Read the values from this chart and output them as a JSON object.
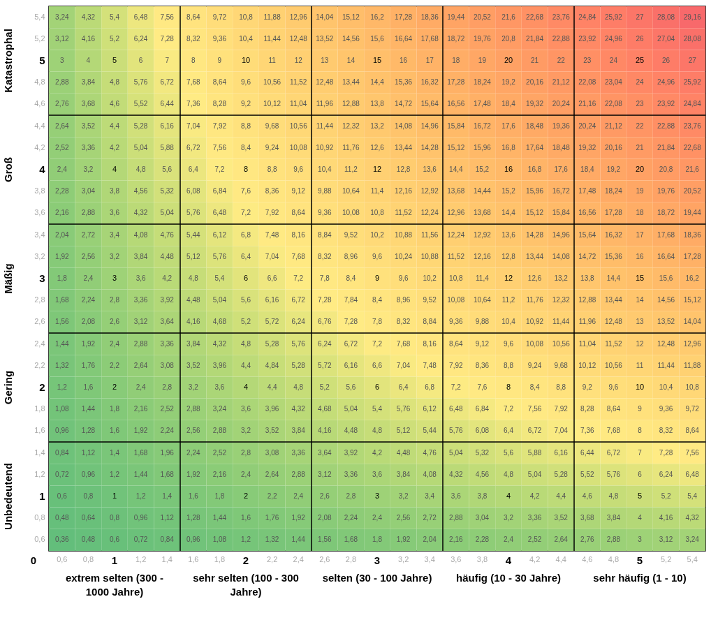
{
  "chart_data": {
    "type": "heatmap",
    "categories": [
      "0,6",
      "0,8",
      "1",
      "1,2",
      "1,4",
      "1,6",
      "1,8",
      "2",
      "2,2",
      "2,4",
      "2,6",
      "2,8",
      "3",
      "3,2",
      "3,4",
      "3,6",
      "3,8",
      "4",
      "4,2",
      "4,4",
      "4,6",
      "4,8",
      "5",
      "5,2",
      "5,4"
    ],
    "y_categories": [
      "5,4",
      "5,2",
      "5",
      "4,8",
      "4,6",
      "4,4",
      "4,2",
      "4",
      "3,8",
      "3,6",
      "3,4",
      "3,2",
      "3",
      "2,8",
      "2,6",
      "2,4",
      "2,2",
      "2",
      "1,8",
      "1,6",
      "1,4",
      "1,2",
      "1",
      "0,8",
      "0,6"
    ],
    "colors": [
      "#63be7b",
      "#ffeb84",
      "#f8696b"
    ],
    "cell_labels": [
      [
        "3,24",
        "4,32",
        "5,4",
        "6,48",
        "7,56",
        "8,64",
        "9,72",
        "10,8",
        "11,88",
        "12,96",
        "14,04",
        "15,12",
        "16,2",
        "17,28",
        "18,36",
        "19,44",
        "20,52",
        "21,6",
        "22,68",
        "23,76",
        "24,84",
        "25,92",
        "27",
        "28,08",
        "29,16"
      ],
      [
        "3,12",
        "4,16",
        "5,2",
        "6,24",
        "7,28",
        "8,32",
        "9,36",
        "10,4",
        "11,44",
        "12,48",
        "13,52",
        "14,56",
        "15,6",
        "16,64",
        "17,68",
        "18,72",
        "19,76",
        "20,8",
        "21,84",
        "22,88",
        "23,92",
        "24,96",
        "26",
        "27,04",
        "28,08"
      ],
      [
        "3",
        "4",
        "5",
        "6",
        "7",
        "8",
        "9",
        "10",
        "11",
        "12",
        "13",
        "14",
        "15",
        "16",
        "17",
        "18",
        "19",
        "20",
        "21",
        "22",
        "23",
        "24",
        "25",
        "26",
        "27"
      ],
      [
        "2,88",
        "3,84",
        "4,8",
        "5,76",
        "6,72",
        "7,68",
        "8,64",
        "9,6",
        "10,56",
        "11,52",
        "12,48",
        "13,44",
        "14,4",
        "15,36",
        "16,32",
        "17,28",
        "18,24",
        "19,2",
        "20,16",
        "21,12",
        "22,08",
        "23,04",
        "24",
        "24,96",
        "25,92"
      ],
      [
        "2,76",
        "3,68",
        "4,6",
        "5,52",
        "6,44",
        "7,36",
        "8,28",
        "9,2",
        "10,12",
        "11,04",
        "11,96",
        "12,88",
        "13,8",
        "14,72",
        "15,64",
        "16,56",
        "17,48",
        "18,4",
        "19,32",
        "20,24",
        "21,16",
        "22,08",
        "23",
        "23,92",
        "24,84"
      ],
      [
        "2,64",
        "3,52",
        "4,4",
        "5,28",
        "6,16",
        "7,04",
        "7,92",
        "8,8",
        "9,68",
        "10,56",
        "11,44",
        "12,32",
        "13,2",
        "14,08",
        "14,96",
        "15,84",
        "16,72",
        "17,6",
        "18,48",
        "19,36",
        "20,24",
        "21,12",
        "22",
        "22,88",
        "23,76"
      ],
      [
        "2,52",
        "3,36",
        "4,2",
        "5,04",
        "5,88",
        "6,72",
        "7,56",
        "8,4",
        "9,24",
        "10,08",
        "10,92",
        "11,76",
        "12,6",
        "13,44",
        "14,28",
        "15,12",
        "15,96",
        "16,8",
        "17,64",
        "18,48",
        "19,32",
        "20,16",
        "21",
        "21,84",
        "22,68"
      ],
      [
        "2,4",
        "3,2",
        "4",
        "4,8",
        "5,6",
        "6,4",
        "7,2",
        "8",
        "8,8",
        "9,6",
        "10,4",
        "11,2",
        "12",
        "12,8",
        "13,6",
        "14,4",
        "15,2",
        "16",
        "16,8",
        "17,6",
        "18,4",
        "19,2",
        "20",
        "20,8",
        "21,6"
      ],
      [
        "2,28",
        "3,04",
        "3,8",
        "4,56",
        "5,32",
        "6,08",
        "6,84",
        "7,6",
        "8,36",
        "9,12",
        "9,88",
        "10,64",
        "11,4",
        "12,16",
        "12,92",
        "13,68",
        "14,44",
        "15,2",
        "15,96",
        "16,72",
        "17,48",
        "18,24",
        "19",
        "19,76",
        "20,52"
      ],
      [
        "2,16",
        "2,88",
        "3,6",
        "4,32",
        "5,04",
        "5,76",
        "6,48",
        "7,2",
        "7,92",
        "8,64",
        "9,36",
        "10,08",
        "10,8",
        "11,52",
        "12,24",
        "12,96",
        "13,68",
        "14,4",
        "15,12",
        "15,84",
        "16,56",
        "17,28",
        "18",
        "18,72",
        "19,44"
      ],
      [
        "2,04",
        "2,72",
        "3,4",
        "4,08",
        "4,76",
        "5,44",
        "6,12",
        "6,8",
        "7,48",
        "8,16",
        "8,84",
        "9,52",
        "10,2",
        "10,88",
        "11,56",
        "12,24",
        "12,92",
        "13,6",
        "14,28",
        "14,96",
        "15,64",
        "16,32",
        "17",
        "17,68",
        "18,36"
      ],
      [
        "1,92",
        "2,56",
        "3,2",
        "3,84",
        "4,48",
        "5,12",
        "5,76",
        "6,4",
        "7,04",
        "7,68",
        "8,32",
        "8,96",
        "9,6",
        "10,24",
        "10,88",
        "11,52",
        "12,16",
        "12,8",
        "13,44",
        "14,08",
        "14,72",
        "15,36",
        "16",
        "16,64",
        "17,28"
      ],
      [
        "1,8",
        "2,4",
        "3",
        "3,6",
        "4,2",
        "4,8",
        "5,4",
        "6",
        "6,6",
        "7,2",
        "7,8",
        "8,4",
        "9",
        "9,6",
        "10,2",
        "10,8",
        "11,4",
        "12",
        "12,6",
        "13,2",
        "13,8",
        "14,4",
        "15",
        "15,6",
        "16,2"
      ],
      [
        "1,68",
        "2,24",
        "2,8",
        "3,36",
        "3,92",
        "4,48",
        "5,04",
        "5,6",
        "6,16",
        "6,72",
        "7,28",
        "7,84",
        "8,4",
        "8,96",
        "9,52",
        "10,08",
        "10,64",
        "11,2",
        "11,76",
        "12,32",
        "12,88",
        "13,44",
        "14",
        "14,56",
        "15,12"
      ],
      [
        "1,56",
        "2,08",
        "2,6",
        "3,12",
        "3,64",
        "4,16",
        "4,68",
        "5,2",
        "5,72",
        "6,24",
        "6,76",
        "7,28",
        "7,8",
        "8,32",
        "8,84",
        "9,36",
        "9,88",
        "10,4",
        "10,92",
        "11,44",
        "11,96",
        "12,48",
        "13",
        "13,52",
        "14,04"
      ],
      [
        "1,44",
        "1,92",
        "2,4",
        "2,88",
        "3,36",
        "3,84",
        "4,32",
        "4,8",
        "5,28",
        "5,76",
        "6,24",
        "6,72",
        "7,2",
        "7,68",
        "8,16",
        "8,64",
        "9,12",
        "9,6",
        "10,08",
        "10,56",
        "11,04",
        "11,52",
        "12",
        "12,48",
        "12,96"
      ],
      [
        "1,32",
        "1,76",
        "2,2",
        "2,64",
        "3,08",
        "3,52",
        "3,96",
        "4,4",
        "4,84",
        "5,28",
        "5,72",
        "6,16",
        "6,6",
        "7,04",
        "7,48",
        "7,92",
        "8,36",
        "8,8",
        "9,24",
        "9,68",
        "10,12",
        "10,56",
        "11",
        "11,44",
        "11,88"
      ],
      [
        "1,2",
        "1,6",
        "2",
        "2,4",
        "2,8",
        "3,2",
        "3,6",
        "4",
        "4,4",
        "4,8",
        "5,2",
        "5,6",
        "6",
        "6,4",
        "6,8",
        "7,2",
        "7,6",
        "8",
        "8,4",
        "8,8",
        "9,2",
        "9,6",
        "10",
        "10,4",
        "10,8"
      ],
      [
        "1,08",
        "1,44",
        "1,8",
        "2,16",
        "2,52",
        "2,88",
        "3,24",
        "3,6",
        "3,96",
        "4,32",
        "4,68",
        "5,04",
        "5,4",
        "5,76",
        "6,12",
        "6,48",
        "6,84",
        "7,2",
        "7,56",
        "7,92",
        "8,28",
        "8,64",
        "9",
        "9,36",
        "9,72"
      ],
      [
        "0,96",
        "1,28",
        "1,6",
        "1,92",
        "2,24",
        "2,56",
        "2,88",
        "3,2",
        "3,52",
        "3,84",
        "4,16",
        "4,48",
        "4,8",
        "5,12",
        "5,44",
        "5,76",
        "6,08",
        "6,4",
        "6,72",
        "7,04",
        "7,36",
        "7,68",
        "8",
        "8,32",
        "8,64"
      ],
      [
        "0,84",
        "1,12",
        "1,4",
        "1,68",
        "1,96",
        "2,24",
        "2,52",
        "2,8",
        "3,08",
        "3,36",
        "3,64",
        "3,92",
        "4,2",
        "4,48",
        "4,76",
        "5,04",
        "5,32",
        "5,6",
        "5,88",
        "6,16",
        "6,44",
        "6,72",
        "7",
        "7,28",
        "7,56"
      ],
      [
        "0,72",
        "0,96",
        "1,2",
        "1,44",
        "1,68",
        "1,92",
        "2,16",
        "2,4",
        "2,64",
        "2,88",
        "3,12",
        "3,36",
        "3,6",
        "3,84",
        "4,08",
        "4,32",
        "4,56",
        "4,8",
        "5,04",
        "5,28",
        "5,52",
        "5,76",
        "6",
        "6,24",
        "6,48"
      ],
      [
        "0,6",
        "0,8",
        "1",
        "1,2",
        "1,4",
        "1,6",
        "1,8",
        "2",
        "2,2",
        "2,4",
        "2,6",
        "2,8",
        "3",
        "3,2",
        "3,4",
        "3,6",
        "3,8",
        "4",
        "4,2",
        "4,4",
        "4,6",
        "4,8",
        "5",
        "5,2",
        "5,4"
      ],
      [
        "0,48",
        "0,64",
        "0,8",
        "0,96",
        "1,12",
        "1,28",
        "1,44",
        "1,6",
        "1,76",
        "1,92",
        "2,08",
        "2,24",
        "2,4",
        "2,56",
        "2,72",
        "2,88",
        "3,04",
        "3,2",
        "3,36",
        "3,52",
        "3,68",
        "3,84",
        "4",
        "4,16",
        "4,32"
      ],
      [
        "0,36",
        "0,48",
        "0,6",
        "0,72",
        "0,84",
        "0,96",
        "1,08",
        "1,2",
        "1,32",
        "1,44",
        "1,56",
        "1,68",
        "1,8",
        "1,92",
        "2,04",
        "2,16",
        "2,28",
        "2,4",
        "2,52",
        "2,64",
        "2,76",
        "2,88",
        "3",
        "3,12",
        "3,24"
      ]
    ],
    "annotations": [
      "Katastrophal",
      "Groß",
      "Mäßig",
      "Gering",
      "Unbedeutend",
      "extrem selten (300 - 1000 Jahre)",
      "sehr selten (100 - 300 Jahre)",
      "selten (30 - 100 Jahre)",
      "häufig (10 - 30 Jahre)",
      "sehr häufig (1 - 10)",
      "0"
    ],
    "cells": [
      [
        3.24,
        4.32,
        5.4,
        6.48,
        7.56,
        8.64,
        9.72,
        10.8,
        11.88,
        12.96,
        14.04,
        15.12,
        16.2,
        17.28,
        18.36,
        19.44,
        20.52,
        21.6,
        22.68,
        23.76,
        24.84,
        25.92,
        27,
        28.08,
        29.16
      ],
      [
        3.12,
        4.16,
        5.2,
        6.24,
        7.28,
        8.32,
        9.36,
        10.4,
        11.44,
        12.48,
        13.52,
        14.56,
        15.6,
        16.64,
        17.68,
        18.72,
        19.76,
        20.8,
        21.84,
        22.88,
        23.92,
        24.96,
        26,
        27.04,
        28.08
      ],
      [
        3,
        4,
        5,
        6,
        7,
        8,
        9,
        10,
        11,
        12,
        13,
        14,
        15,
        16,
        17,
        18,
        19,
        20,
        21,
        22,
        23,
        24,
        25,
        26,
        27
      ],
      [
        2.88,
        3.84,
        4.8,
        5.76,
        6.72,
        7.68,
        8.64,
        9.6,
        10.56,
        11.52,
        12.48,
        13.44,
        14.4,
        15.36,
        16.32,
        17.28,
        18.24,
        19.2,
        20.16,
        21.12,
        22.08,
        23.04,
        24,
        24.96,
        25.92
      ],
      [
        2.76,
        3.68,
        4.6,
        5.52,
        6.44,
        7.36,
        8.28,
        9.2,
        10.12,
        11.04,
        11.96,
        12.88,
        13.8,
        14.72,
        15.64,
        16.56,
        17.48,
        18.4,
        19.32,
        20.24,
        21.16,
        22.08,
        23,
        23.92,
        24.84
      ],
      [
        2.64,
        3.52,
        4.4,
        5.28,
        6.16,
        7.04,
        7.92,
        8.8,
        9.68,
        10.56,
        11.44,
        12.32,
        13.2,
        14.08,
        14.96,
        15.84,
        16.72,
        17.6,
        18.48,
        19.36,
        20.24,
        21.12,
        22,
        22.88,
        23.76
      ],
      [
        2.52,
        3.36,
        4.2,
        5.04,
        5.88,
        6.72,
        7.56,
        8.4,
        9.24,
        10.08,
        10.92,
        11.76,
        12.6,
        13.44,
        14.28,
        15.12,
        15.96,
        16.8,
        17.64,
        18.48,
        19.32,
        20.16,
        21,
        21.84,
        22.68
      ],
      [
        2.4,
        3.2,
        4,
        4.8,
        5.6,
        6.4,
        7.2,
        8,
        8.8,
        9.6,
        10.4,
        11.2,
        12,
        12.8,
        13.6,
        14.4,
        15.2,
        16,
        16.8,
        17.6,
        18.4,
        19.2,
        20,
        20.8,
        21.6
      ],
      [
        2.28,
        3.04,
        3.8,
        4.56,
        5.32,
        6.08,
        6.84,
        7.6,
        8.36,
        9.12,
        9.88,
        10.64,
        11.4,
        12.16,
        12.92,
        13.68,
        14.44,
        15.2,
        15.96,
        16.72,
        17.48,
        18.24,
        19,
        19.76,
        20.52
      ],
      [
        2.16,
        2.88,
        3.6,
        4.32,
        5.04,
        5.76,
        6.48,
        7.2,
        7.92,
        8.64,
        9.36,
        10.08,
        10.8,
        11.52,
        12.24,
        12.96,
        13.68,
        14.4,
        15.12,
        15.84,
        16.56,
        17.28,
        18,
        18.72,
        19.44
      ],
      [
        2.04,
        2.72,
        3.4,
        4.08,
        4.76,
        5.44,
        6.12,
        6.8,
        7.48,
        8.16,
        8.84,
        9.52,
        10.2,
        10.88,
        11.56,
        12.24,
        12.92,
        13.6,
        14.28,
        14.96,
        15.64,
        16.32,
        17,
        17.68,
        18.36
      ],
      [
        1.92,
        2.56,
        3.2,
        3.84,
        4.48,
        5.12,
        5.76,
        6.4,
        7.04,
        7.68,
        8.32,
        8.96,
        9.6,
        10.24,
        10.88,
        11.52,
        12.16,
        12.8,
        13.44,
        14.08,
        14.72,
        15.36,
        16,
        16.64,
        17.28
      ],
      [
        1.8,
        2.4,
        3,
        3.6,
        4.2,
        4.8,
        5.4,
        6,
        6.6,
        7.2,
        7.8,
        8.4,
        9,
        9.6,
        10.2,
        10.8,
        11.4,
        12,
        12.6,
        13.2,
        13.8,
        14.4,
        15,
        15.6,
        16.2
      ],
      [
        1.68,
        2.24,
        2.8,
        3.36,
        3.92,
        4.48,
        5.04,
        5.6,
        6.16,
        6.72,
        7.28,
        7.84,
        8.4,
        8.96,
        9.52,
        10.08,
        10.64,
        11.2,
        11.76,
        12.32,
        12.88,
        13.44,
        14,
        14.56,
        15.12
      ],
      [
        1.56,
        2.08,
        2.6,
        3.12,
        3.64,
        4.16,
        4.68,
        5.2,
        5.72,
        6.24,
        6.76,
        7.28,
        7.8,
        8.32,
        8.84,
        9.36,
        9.88,
        10.4,
        10.92,
        11.44,
        11.96,
        12.48,
        13,
        13.52,
        14.04
      ],
      [
        1.44,
        1.92,
        2.4,
        2.88,
        3.36,
        3.84,
        4.32,
        4.8,
        5.28,
        5.76,
        6.24,
        6.72,
        7.2,
        7.68,
        8.16,
        8.64,
        9.12,
        9.6,
        10.08,
        10.56,
        11.04,
        11.52,
        12,
        12.48,
        12.96
      ],
      [
        1.32,
        1.76,
        2.2,
        2.64,
        3.08,
        3.52,
        3.96,
        4.4,
        4.84,
        5.28,
        5.72,
        6.16,
        6.6,
        7.04,
        7.48,
        7.92,
        8.36,
        8.8,
        9.24,
        9.68,
        10.12,
        10.56,
        11,
        11.44,
        11.88
      ],
      [
        1.2,
        1.6,
        2,
        2.4,
        2.8,
        3.2,
        3.6,
        4,
        4.4,
        4.8,
        5.2,
        5.6,
        6,
        6.4,
        6.8,
        7.2,
        7.6,
        8,
        8.4,
        8.8,
        9.2,
        9.6,
        10,
        10.4,
        10.8
      ],
      [
        1.08,
        1.44,
        1.8,
        2.16,
        2.52,
        2.88,
        3.24,
        3.6,
        3.96,
        4.32,
        4.68,
        5.04,
        5.4,
        5.76,
        6.12,
        6.48,
        6.84,
        7.2,
        7.56,
        7.92,
        8.28,
        8.64,
        9,
        9.36,
        9.72
      ],
      [
        0.96,
        1.28,
        1.6,
        1.92,
        2.24,
        2.56,
        2.88,
        3.2,
        3.52,
        3.84,
        4.16,
        4.48,
        4.8,
        5.12,
        5.44,
        5.76,
        6.08,
        6.4,
        6.72,
        7.04,
        7.36,
        7.68,
        8,
        8.32,
        8.64
      ],
      [
        0.84,
        1.12,
        1.4,
        1.68,
        1.96,
        2.24,
        2.52,
        2.8,
        3.08,
        3.36,
        3.64,
        3.92,
        4.2,
        4.48,
        4.76,
        5.04,
        5.32,
        5.6,
        5.88,
        6.16,
        6.44,
        6.72,
        7,
        7.28,
        7.56
      ],
      [
        0.72,
        0.96,
        1.2,
        1.44,
        1.68,
        1.92,
        2.16,
        2.4,
        2.64,
        2.88,
        3.12,
        3.36,
        3.6,
        3.84,
        4.08,
        4.32,
        4.56,
        4.8,
        5.04,
        5.28,
        5.52,
        5.76,
        6,
        6.24,
        6.48
      ],
      [
        0.6,
        0.8,
        1,
        1.2,
        1.4,
        1.6,
        1.8,
        2,
        2.2,
        2.4,
        2.6,
        2.8,
        3,
        3.2,
        3.4,
        3.6,
        3.8,
        4,
        4.2,
        4.4,
        4.6,
        4.8,
        5,
        5.2,
        5.4
      ],
      [
        0.48,
        0.64,
        0.8,
        0.96,
        1.12,
        1.28,
        1.44,
        1.6,
        1.76,
        1.92,
        2.08,
        2.24,
        2.4,
        2.56,
        2.72,
        2.88,
        3.04,
        3.2,
        3.36,
        3.52,
        3.68,
        3.84,
        4,
        4.16,
        4.32
      ],
      [
        0.36,
        0.48,
        0.6,
        0.72,
        0.84,
        0.96,
        1.08,
        1.2,
        1.32,
        1.44,
        1.56,
        1.68,
        1.8,
        1.92,
        2.04,
        2.16,
        2.28,
        2.4,
        2.52,
        2.64,
        2.76,
        2.88,
        3,
        3.12,
        3.24
      ]
    ]
  }
}
